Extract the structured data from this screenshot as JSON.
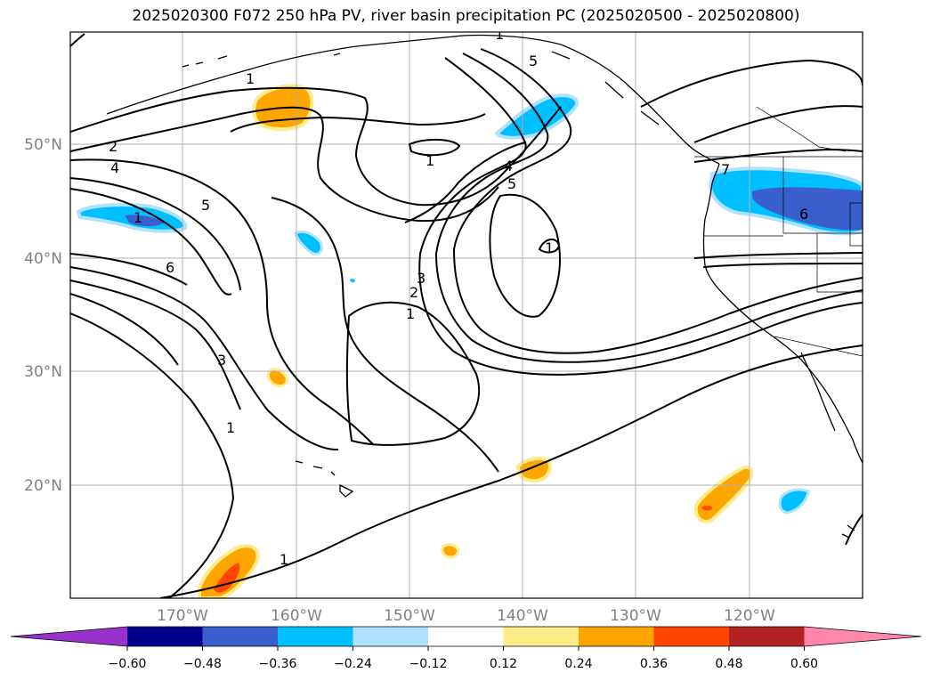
{
  "title": "2025020300 F072 250 hPa PV, river basin precipitation PC (2025020500 - 2025020800)",
  "map": {
    "lat_labels": [
      "50°N",
      "40°N",
      "30°N",
      "20°N"
    ],
    "lon_labels": [
      "170°W",
      "160°W",
      "150°W",
      "140°W",
      "130°W",
      "120°W"
    ],
    "contour_labels": [
      "2",
      "4",
      "1",
      "5",
      "6",
      "3",
      "1",
      "1",
      "1",
      "1",
      "5",
      "1",
      "4",
      "5",
      "3",
      "2",
      "1",
      "7",
      "6",
      "1"
    ]
  },
  "colorbar": {
    "tick_labels": [
      "−0.60",
      "−0.48",
      "−0.36",
      "−0.24",
      "−0.12",
      "0.12",
      "0.24",
      "0.36",
      "0.48",
      "0.60"
    ],
    "colors": [
      "#9932cc",
      "#00008b",
      "#3a5fcd",
      "#00bfff",
      "#b0e2ff",
      "#ffffff",
      "#ffec8b",
      "#ffa500",
      "#ff4500",
      "#b22222",
      "#ff88aa"
    ]
  }
}
